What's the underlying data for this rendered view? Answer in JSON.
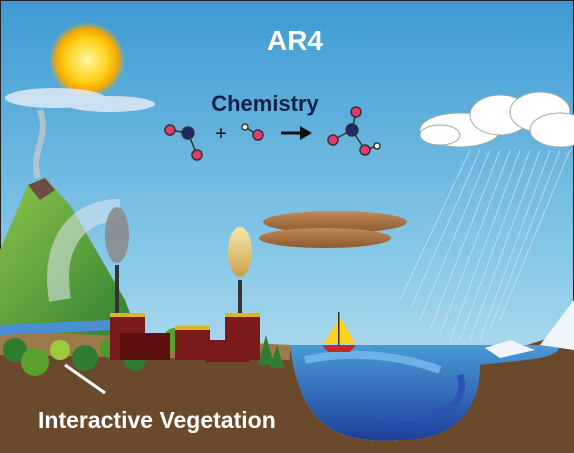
{
  "title": "AR4",
  "chemistry": {
    "label": "Chemistry",
    "plus": "+"
  },
  "vegetation_label": "Interactive Vegetation"
}
